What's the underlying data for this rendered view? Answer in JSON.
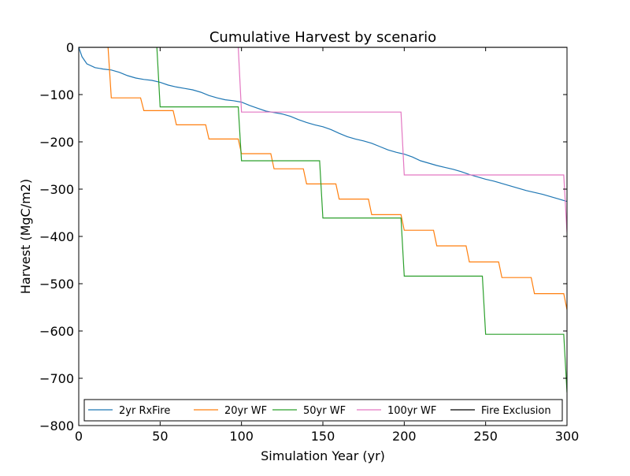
{
  "chart_data": {
    "type": "line",
    "title": "Cumulative Harvest by scenario",
    "xlabel": "Simulation Year (yr)",
    "ylabel": "Harvest (MgC/m2)",
    "xlim": [
      0,
      300
    ],
    "ylim": [
      -800,
      0
    ],
    "x_ticks": [
      0,
      50,
      100,
      150,
      200,
      250,
      300
    ],
    "y_ticks": [
      0,
      -100,
      -200,
      -300,
      -400,
      -500,
      -600,
      -700,
      -800
    ],
    "x_tick_labels": [
      "0",
      "50",
      "100",
      "150",
      "200",
      "250",
      "300"
    ],
    "y_tick_labels": [
      "0",
      "−100",
      "−200",
      "−300",
      "−400",
      "−500",
      "−600",
      "−700",
      "−800"
    ],
    "grid": false,
    "legend_position": "bottom",
    "series": [
      {
        "name": "2yr RxFire",
        "color": "#1f77b4",
        "points": [
          [
            0,
            0
          ],
          [
            2,
            -20
          ],
          [
            5,
            -35
          ],
          [
            10,
            -43
          ],
          [
            15,
            -46
          ],
          [
            20,
            -48
          ],
          [
            25,
            -53
          ],
          [
            30,
            -60
          ],
          [
            35,
            -65
          ],
          [
            40,
            -68
          ],
          [
            45,
            -70
          ],
          [
            50,
            -74
          ],
          [
            55,
            -80
          ],
          [
            60,
            -84
          ],
          [
            65,
            -87
          ],
          [
            70,
            -90
          ],
          [
            75,
            -95
          ],
          [
            80,
            -102
          ],
          [
            85,
            -107
          ],
          [
            90,
            -111
          ],
          [
            95,
            -113
          ],
          [
            100,
            -116
          ],
          [
            105,
            -123
          ],
          [
            110,
            -129
          ],
          [
            115,
            -135
          ],
          [
            120,
            -138
          ],
          [
            125,
            -141
          ],
          [
            130,
            -146
          ],
          [
            135,
            -153
          ],
          [
            140,
            -159
          ],
          [
            145,
            -164
          ],
          [
            150,
            -168
          ],
          [
            155,
            -174
          ],
          [
            160,
            -182
          ],
          [
            165,
            -189
          ],
          [
            170,
            -194
          ],
          [
            175,
            -198
          ],
          [
            180,
            -203
          ],
          [
            185,
            -210
          ],
          [
            190,
            -217
          ],
          [
            195,
            -222
          ],
          [
            200,
            -226
          ],
          [
            205,
            -232
          ],
          [
            210,
            -240
          ],
          [
            215,
            -245
          ],
          [
            220,
            -250
          ],
          [
            225,
            -254
          ],
          [
            230,
            -258
          ],
          [
            235,
            -263
          ],
          [
            240,
            -269
          ],
          [
            245,
            -274
          ],
          [
            250,
            -279
          ],
          [
            255,
            -283
          ],
          [
            260,
            -288
          ],
          [
            265,
            -293
          ],
          [
            270,
            -298
          ],
          [
            275,
            -303
          ],
          [
            280,
            -307
          ],
          [
            285,
            -311
          ],
          [
            290,
            -316
          ],
          [
            295,
            -321
          ],
          [
            300,
            -326
          ]
        ]
      },
      {
        "name": "20yr WF",
        "color": "#ff7f0e",
        "points": [
          [
            18,
            0
          ],
          [
            20,
            -107
          ],
          [
            38,
            -107
          ],
          [
            40,
            -134
          ],
          [
            58,
            -134
          ],
          [
            60,
            -164
          ],
          [
            78,
            -164
          ],
          [
            80,
            -194
          ],
          [
            98,
            -194
          ],
          [
            100,
            -225
          ],
          [
            118,
            -225
          ],
          [
            120,
            -257
          ],
          [
            138,
            -257
          ],
          [
            140,
            -289
          ],
          [
            158,
            -289
          ],
          [
            160,
            -321
          ],
          [
            178,
            -321
          ],
          [
            180,
            -354
          ],
          [
            198,
            -354
          ],
          [
            200,
            -387
          ],
          [
            218,
            -387
          ],
          [
            220,
            -420
          ],
          [
            238,
            -420
          ],
          [
            240,
            -454
          ],
          [
            258,
            -454
          ],
          [
            260,
            -487
          ],
          [
            278,
            -487
          ],
          [
            280,
            -521
          ],
          [
            298,
            -521
          ],
          [
            300,
            -555
          ]
        ]
      },
      {
        "name": "50yr WF",
        "color": "#2ca02c",
        "points": [
          [
            48,
            0
          ],
          [
            50,
            -126
          ],
          [
            98,
            -126
          ],
          [
            100,
            -240
          ],
          [
            148,
            -240
          ],
          [
            150,
            -361
          ],
          [
            198,
            -361
          ],
          [
            200,
            -484
          ],
          [
            248,
            -484
          ],
          [
            250,
            -607
          ],
          [
            298,
            -607
          ],
          [
            300,
            -730
          ]
        ]
      },
      {
        "name": "100yr WF",
        "color": "#e377c2",
        "points": [
          [
            98,
            0
          ],
          [
            100,
            -137
          ],
          [
            198,
            -137
          ],
          [
            200,
            -270
          ],
          [
            298,
            -270
          ],
          [
            300,
            -392
          ]
        ]
      },
      {
        "name": "Fire Exclusion",
        "color": "#000000",
        "points": [
          [
            0,
            0
          ],
          [
            300,
            0
          ]
        ]
      }
    ]
  }
}
